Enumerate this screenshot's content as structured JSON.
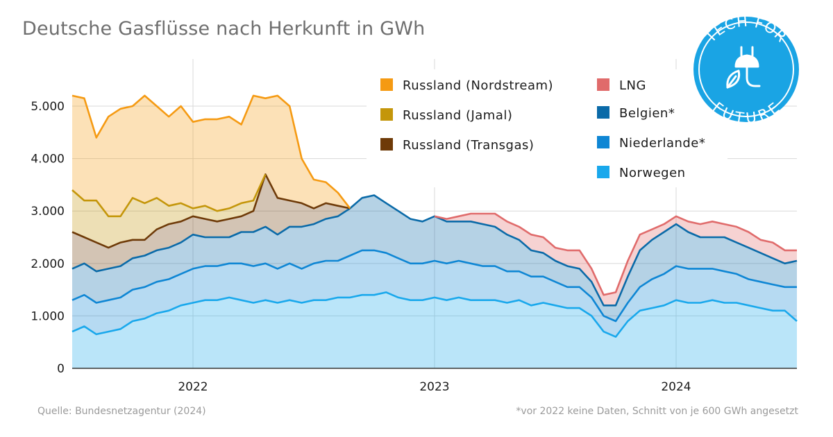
{
  "title": "Deutsche Gasflüsse nach Herkunft in GWh",
  "source": "Quelle: Bundesnetzagentur (2024)",
  "footnote": "*vor 2022 keine Daten, Schnitt von je 600 GWh angesetzt",
  "logo": {
    "top_text": "TECH FOR",
    "bottom_text": "FUTURE",
    "color": "#1aa4e4",
    "icon": "plug-leaf-icon"
  },
  "chart_data": {
    "type": "area",
    "stacked": true,
    "title": "Deutsche Gasflüsse nach Herkunft in GWh",
    "xlabel": "",
    "ylabel": "",
    "x_ticks": [
      "2022",
      "2023",
      "2024"
    ],
    "y_ticks": [
      "0",
      "1.000",
      "2.000",
      "3.000",
      "4.000",
      "5.000"
    ],
    "y_tick_values": [
      0,
      1000,
      2000,
      3000,
      4000,
      5000
    ],
    "xlim": [
      2021.5,
      2024.5
    ],
    "ylim": [
      0,
      5900
    ],
    "grid": true,
    "legend_position": "top-right",
    "x": [
      2021.5,
      2021.55,
      2021.6,
      2021.65,
      2021.7,
      2021.75,
      2021.8,
      2021.85,
      2021.9,
      2021.95,
      2022.0,
      2022.05,
      2022.1,
      2022.15,
      2022.2,
      2022.25,
      2022.3,
      2022.35,
      2022.4,
      2022.45,
      2022.5,
      2022.55,
      2022.6,
      2022.65,
      2022.7,
      2022.75,
      2022.8,
      2022.85,
      2022.9,
      2022.95,
      2023.0,
      2023.05,
      2023.1,
      2023.15,
      2023.2,
      2023.25,
      2023.3,
      2023.35,
      2023.4,
      2023.45,
      2023.5,
      2023.55,
      2023.6,
      2023.65,
      2023.7,
      2023.75,
      2023.8,
      2023.85,
      2023.9,
      2023.95,
      2024.0,
      2024.05,
      2024.1,
      2024.15,
      2024.2,
      2024.25,
      2024.3,
      2024.35,
      2024.4,
      2024.45,
      2024.5
    ],
    "series": [
      {
        "name": "Norwegen",
        "color": "#19a8ec",
        "values": [
          700,
          800,
          650,
          700,
          750,
          900,
          950,
          1050,
          1100,
          1200,
          1250,
          1300,
          1300,
          1350,
          1300,
          1250,
          1300,
          1250,
          1300,
          1250,
          1300,
          1300,
          1350,
          1350,
          1400,
          1400,
          1450,
          1350,
          1300,
          1300,
          1350,
          1300,
          1350,
          1300,
          1300,
          1300,
          1250,
          1300,
          1200,
          1250,
          1200,
          1150,
          1150,
          1000,
          700,
          600,
          900,
          1100,
          1150,
          1200,
          1300,
          1250,
          1250,
          1300,
          1250,
          1250,
          1200,
          1150,
          1100,
          1100,
          900
        ]
      },
      {
        "name": "Niederlande*",
        "color": "#0e86d4",
        "values": [
          600,
          600,
          600,
          600,
          600,
          600,
          600,
          600,
          600,
          600,
          650,
          650,
          650,
          650,
          700,
          700,
          700,
          650,
          700,
          650,
          700,
          750,
          700,
          800,
          850,
          850,
          750,
          750,
          700,
          700,
          700,
          700,
          700,
          700,
          650,
          650,
          600,
          550,
          550,
          500,
          450,
          400,
          400,
          350,
          300,
          300,
          350,
          450,
          550,
          600,
          650,
          650,
          650,
          600,
          600,
          550,
          500,
          500,
          500,
          450,
          650
        ]
      },
      {
        "name": "Belgien*",
        "color": "#0a6aa8",
        "values": [
          600,
          600,
          600,
          600,
          600,
          600,
          600,
          600,
          600,
          600,
          650,
          550,
          550,
          500,
          600,
          650,
          700,
          650,
          700,
          800,
          750,
          800,
          850,
          900,
          1000,
          1050,
          950,
          900,
          850,
          800,
          850,
          800,
          750,
          800,
          800,
          750,
          700,
          600,
          500,
          450,
          400,
          400,
          350,
          300,
          200,
          300,
          500,
          700,
          750,
          800,
          800,
          700,
          600,
          600,
          650,
          600,
          600,
          550,
          500,
          450,
          500
        ]
      },
      {
        "name": "LNG",
        "color": "#e06b6b",
        "values": [
          0,
          0,
          0,
          0,
          0,
          0,
          0,
          0,
          0,
          0,
          0,
          0,
          0,
          0,
          0,
          0,
          0,
          0,
          0,
          0,
          0,
          0,
          0,
          0,
          0,
          0,
          0,
          0,
          0,
          0,
          0,
          50,
          100,
          150,
          200,
          250,
          250,
          250,
          300,
          300,
          250,
          300,
          350,
          250,
          200,
          250,
          300,
          300,
          200,
          150,
          150,
          200,
          250,
          300,
          250,
          300,
          300,
          250,
          300,
          250,
          200
        ]
      },
      {
        "name": "Russland (Transgas)",
        "color": "#6e3a08",
        "values": [
          700,
          500,
          550,
          400,
          450,
          350,
          300,
          400,
          450,
          400,
          350,
          350,
          300,
          350,
          300,
          400,
          1000,
          700,
          500,
          450,
          300,
          300,
          200,
          0,
          0,
          0,
          0,
          0,
          0,
          0,
          0,
          0,
          0,
          0,
          0,
          0,
          0,
          0,
          0,
          0,
          0,
          0,
          0,
          0,
          0,
          0,
          0,
          0,
          0,
          0,
          0,
          0,
          0,
          0,
          0,
          0,
          0,
          0,
          0,
          0,
          0
        ]
      },
      {
        "name": "Russland (Jamal)",
        "color": "#c4960a",
        "values": [
          800,
          700,
          800,
          600,
          500,
          800,
          700,
          600,
          350,
          350,
          150,
          250,
          200,
          200,
          250,
          200,
          0,
          0,
          0,
          0,
          0,
          0,
          0,
          0,
          0,
          0,
          0,
          0,
          0,
          0,
          0,
          0,
          0,
          0,
          0,
          0,
          0,
          0,
          0,
          0,
          0,
          0,
          0,
          0,
          0,
          0,
          0,
          0,
          0,
          0,
          0,
          0,
          0,
          0,
          0,
          0,
          0,
          0,
          0,
          0,
          0
        ]
      },
      {
        "name": "Russland (Nordstream)",
        "color": "#f59a12",
        "values": [
          1800,
          1950,
          1200,
          1900,
          2050,
          1750,
          2050,
          1750,
          1700,
          1850,
          1650,
          1650,
          1750,
          1750,
          1500,
          2000,
          1450,
          1950,
          1800,
          850,
          550,
          400,
          250,
          0,
          0,
          0,
          0,
          0,
          0,
          0,
          0,
          0,
          0,
          0,
          0,
          0,
          0,
          0,
          0,
          0,
          0,
          0,
          0,
          0,
          0,
          0,
          0,
          0,
          0,
          0,
          0,
          0,
          0,
          0,
          0,
          0,
          0,
          0,
          0,
          0,
          0
        ]
      }
    ],
    "legend": [
      {
        "name": "Russland (Nordstream)",
        "color": "#f59a12"
      },
      {
        "name": "Russland (Jamal)",
        "color": "#c4960a"
      },
      {
        "name": "Russland (Transgas)",
        "color": "#6e3a08"
      },
      {
        "name": "LNG",
        "color": "#e06b6b"
      },
      {
        "name": "Belgien*",
        "color": "#0a6aa8"
      },
      {
        "name": "Niederlande*",
        "color": "#0e86d4"
      },
      {
        "name": "Norwegen",
        "color": "#19a8ec"
      }
    ]
  }
}
